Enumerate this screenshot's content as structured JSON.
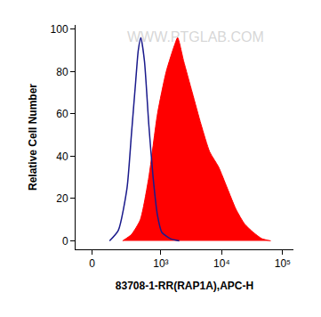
{
  "chart_data": {
    "type": "line",
    "x_label": "83708-1-RR(RAP1A),APC-H",
    "y_label": "Relative Cell Number",
    "annotations": [
      {
        "text": "WWW.PTGLAB.COM"
      }
    ],
    "xlim": [
      -100,
      150000
    ],
    "xticks": [
      0,
      {
        "value": 1000,
        "label": "10³"
      },
      {
        "value": 10000,
        "label": "10⁴"
      },
      {
        "value": 100000,
        "label": "10⁵"
      }
    ],
    "ylim": [
      -4,
      102
    ],
    "yticks": [
      0,
      20,
      40,
      60,
      80,
      100
    ],
    "grid": false,
    "series": [
      {
        "type": "line",
        "color": "#1a1a8c",
        "x": [
          106,
          174,
          260,
          313,
          373,
          415,
          460,
          530,
          628,
          742,
          878,
          1037,
          1446,
          2010
        ],
        "values": [
          0,
          5,
          25,
          50,
          75,
          90,
          96,
          85,
          55,
          30,
          12,
          4,
          1,
          0
        ]
      },
      {
        "type": "area",
        "color": "#ff0000",
        "x": [
          213,
          313,
          450,
          628,
          878,
          1226,
          1704,
          1890,
          2370,
          3290,
          4580,
          6360,
          8850,
          12300,
          17100,
          23700,
          33000,
          45800,
          63600
        ],
        "values": [
          0,
          3,
          10,
          30,
          60,
          80,
          93,
          96,
          85,
          70,
          55,
          42,
          35,
          25,
          15,
          8,
          4,
          1,
          0
        ]
      }
    ]
  }
}
